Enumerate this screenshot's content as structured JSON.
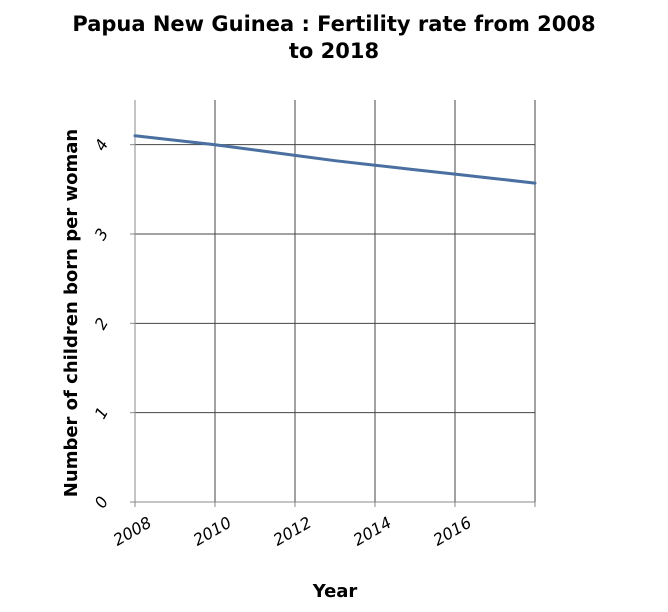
{
  "chart_data": {
    "type": "line",
    "title_lines": [
      "Papua New Guinea : Fertility rate from 2008",
      "to 2018"
    ],
    "xlabel": "Year",
    "ylabel": "Number of children born per woman",
    "x": [
      2008,
      2009,
      2010,
      2011,
      2012,
      2013,
      2014,
      2015,
      2016,
      2017,
      2018
    ],
    "series": [
      {
        "values": [
          4.1,
          4.05,
          4.0,
          3.94,
          3.88,
          3.82,
          3.77,
          3.72,
          3.67,
          3.62,
          3.57
        ]
      }
    ],
    "xlim": [
      2008,
      2018
    ],
    "ylim": [
      0,
      4.5
    ],
    "xticks": [
      2008,
      2010,
      2012,
      2014,
      2016
    ],
    "xtick_labels": [
      "2008",
      "2010",
      "2012",
      "2014",
      "2016"
    ],
    "yticks": [
      0,
      1,
      2,
      3,
      4
    ],
    "ytick_labels": [
      "0",
      "1",
      "2",
      "3",
      "4"
    ],
    "grid": true,
    "legend": "none",
    "line_color": "#4a6fa0"
  }
}
